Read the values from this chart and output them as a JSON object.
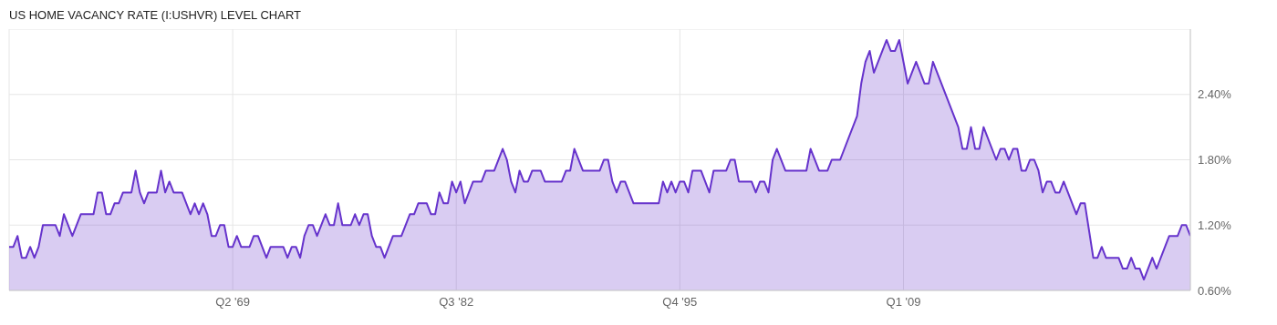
{
  "chart_data": {
    "type": "area",
    "title": "US HOME VACANCY RATE (I:USHVR) LEVEL CHART",
    "x": [
      "1956-01",
      "1956-04",
      "1956-07",
      "1956-10",
      "1957-01",
      "1957-04",
      "1957-07",
      "1957-10",
      "1958-01",
      "1958-10",
      "1959-01",
      "1959-04",
      "1959-10",
      "1960-04",
      "1961-01",
      "1961-04",
      "1961-07",
      "1961-10",
      "1962-01",
      "1962-04",
      "1962-07",
      "1962-10",
      "1963-04",
      "1963-07",
      "1963-10",
      "1964-01",
      "1964-04",
      "1964-10",
      "1965-01",
      "1965-04",
      "1965-07",
      "1965-10",
      "1966-04",
      "1966-10",
      "1967-01",
      "1967-04",
      "1967-07",
      "1967-10",
      "1968-01",
      "1968-04",
      "1968-07",
      "1968-10",
      "1969-01",
      "1969-04",
      "1969-07",
      "1969-10",
      "1970-04",
      "1970-07",
      "1970-10",
      "1971-04",
      "1971-07",
      "1972-04",
      "1972-07",
      "1972-10",
      "1973-01",
      "1973-04",
      "1973-07",
      "1973-10",
      "1974-01",
      "1974-04",
      "1974-10",
      "1975-01",
      "1975-04",
      "1975-07",
      "1975-10",
      "1976-04",
      "1976-07",
      "1976-10",
      "1977-01",
      "1977-04",
      "1977-07",
      "1977-10",
      "1978-01",
      "1978-04",
      "1978-10",
      "1979-04",
      "1979-10",
      "1980-01",
      "1980-04",
      "1980-10",
      "1981-01",
      "1981-04",
      "1981-07",
      "1981-10",
      "1982-01",
      "1982-04",
      "1982-07",
      "1982-10",
      "1983-01",
      "1983-07",
      "1984-01",
      "1984-04",
      "1984-10",
      "1985-04",
      "1985-07",
      "1985-10",
      "1986-01",
      "1986-04",
      "1986-07",
      "1986-10",
      "1987-01",
      "1987-07",
      "1987-10",
      "1988-10",
      "1989-01",
      "1989-04",
      "1989-07",
      "1990-01",
      "1991-01",
      "1991-04",
      "1991-07",
      "1991-10",
      "1992-01",
      "1992-04",
      "1992-07",
      "1993-01",
      "1994-07",
      "1994-10",
      "1995-01",
      "1995-04",
      "1995-07",
      "1995-10",
      "1996-01",
      "1996-04",
      "1996-07",
      "1997-01",
      "1997-07",
      "1997-10",
      "1998-07",
      "1998-10",
      "1999-01",
      "1999-04",
      "2000-01",
      "2000-04",
      "2000-07",
      "2000-10",
      "2001-01",
      "2001-04",
      "2001-07",
      "2002-01",
      "2003-04",
      "2003-07",
      "2004-01",
      "2004-07",
      "2004-10",
      "2005-04",
      "2006-04",
      "2006-07",
      "2006-10",
      "2007-01",
      "2007-04",
      "2008-01",
      "2008-04",
      "2008-07",
      "2008-10",
      "2009-04",
      "2009-10",
      "2010-04",
      "2010-07",
      "2010-10",
      "2012-04",
      "2012-07",
      "2012-10",
      "2013-01",
      "2013-04",
      "2013-07",
      "2013-10",
      "2014-07",
      "2014-10",
      "2015-01",
      "2015-04",
      "2015-07",
      "2015-10",
      "2016-01",
      "2016-04",
      "2016-07",
      "2016-10",
      "2017-01",
      "2017-04",
      "2017-07",
      "2017-10",
      "2018-01",
      "2018-04",
      "2018-07",
      "2019-04",
      "2019-07",
      "2019-10",
      "2020-04",
      "2020-07",
      "2020-10",
      "2021-01",
      "2021-10",
      "2022-01",
      "2022-04",
      "2022-07",
      "2022-10",
      "2023-01",
      "2023-04",
      "2023-10",
      "2024-01",
      "2024-10",
      "2025-04",
      "2025-07",
      "2025-10",
      "2026-01"
    ],
    "values": [
      1.0,
      1.0,
      1.1,
      0.9,
      0.9,
      1.0,
      0.9,
      1.0,
      1.2,
      1.2,
      1.1,
      1.3,
      1.1,
      1.3,
      1.3,
      1.5,
      1.5,
      1.3,
      1.3,
      1.4,
      1.4,
      1.5,
      1.5,
      1.7,
      1.5,
      1.4,
      1.5,
      1.5,
      1.7,
      1.5,
      1.6,
      1.5,
      1.5,
      1.3,
      1.4,
      1.3,
      1.4,
      1.3,
      1.1,
      1.1,
      1.2,
      1.2,
      1.0,
      1.0,
      1.1,
      1.0,
      1.0,
      1.1,
      1.1,
      0.9,
      1.0,
      1.0,
      0.9,
      1.0,
      1.0,
      0.9,
      1.1,
      1.2,
      1.2,
      1.1,
      1.3,
      1.2,
      1.2,
      1.4,
      1.2,
      1.2,
      1.3,
      1.2,
      1.3,
      1.3,
      1.1,
      1.0,
      1.0,
      0.9,
      1.1,
      1.1,
      1.3,
      1.3,
      1.4,
      1.4,
      1.3,
      1.3,
      1.5,
      1.4,
      1.4,
      1.6,
      1.5,
      1.6,
      1.4,
      1.6,
      1.6,
      1.7,
      1.7,
      1.9,
      1.8,
      1.6,
      1.5,
      1.7,
      1.6,
      1.6,
      1.7,
      1.7,
      1.6,
      1.6,
      1.7,
      1.7,
      1.9,
      1.7,
      1.7,
      1.8,
      1.8,
      1.6,
      1.5,
      1.6,
      1.6,
      1.4,
      1.4,
      1.6,
      1.5,
      1.6,
      1.5,
      1.6,
      1.6,
      1.5,
      1.7,
      1.7,
      1.5,
      1.7,
      1.7,
      1.8,
      1.8,
      1.6,
      1.6,
      1.5,
      1.6,
      1.6,
      1.5,
      1.8,
      1.9,
      1.7,
      1.7,
      1.9,
      1.7,
      1.7,
      1.8,
      1.8,
      2.2,
      2.5,
      2.7,
      2.8,
      2.6,
      2.9,
      2.8,
      2.8,
      2.9,
      2.5,
      2.7,
      2.5,
      2.5,
      2.7,
      2.1,
      1.9,
      1.9,
      2.1,
      1.9,
      1.9,
      2.1,
      1.8,
      1.9,
      1.9,
      1.8,
      1.9,
      1.9,
      1.7,
      1.7,
      1.8,
      1.8,
      1.7,
      1.5,
      1.6,
      1.6,
      1.5,
      1.5,
      1.6,
      1.3,
      1.4,
      1.4,
      0.9,
      0.9,
      1.0,
      0.9,
      0.9,
      0.8,
      0.8,
      0.9,
      0.8,
      0.8,
      0.7,
      0.9,
      0.8,
      1.1,
      1.1,
      1.2,
      1.2,
      1.1
    ],
    "color": "#6633cc",
    "xlim": [
      "1956-01",
      "2026-01"
    ],
    "xticks": [
      {
        "value": "1969-04",
        "label": "Q2 '69"
      },
      {
        "value": "1982-07",
        "label": "Q3 '82"
      },
      {
        "value": "1995-10",
        "label": "Q4 '95"
      },
      {
        "value": "2009-01",
        "label": "Q1 '09"
      }
    ],
    "ylim": [
      0.6,
      3.0
    ],
    "yticks": [
      {
        "value": 0.6,
        "label": "0.60%"
      },
      {
        "value": 1.2,
        "label": "1.20%"
      },
      {
        "value": 1.8,
        "label": "1.80%"
      },
      {
        "value": 2.4,
        "label": "2.40%"
      }
    ],
    "grid": true
  }
}
